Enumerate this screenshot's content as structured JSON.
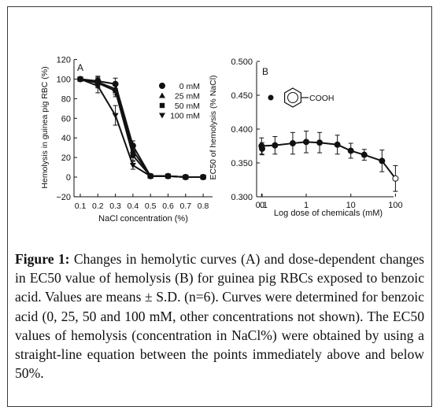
{
  "caption": {
    "label": "Figure 1:",
    "text": "Changes in hemolytic curves (A) and dose-dependent changes in EC50 value of hemolysis (B) for guinea pig RBCs exposed to benzoic acid. Values are means ± S.D. (n=6). Curves were determined for benzoic acid (0, 25, 50 and 100 mM, other concentrations not shown). The EC50 values of hemolysis (concentration in NaCl%) were obtained by using a straight-line equation between the points immediately above and below 50%."
  },
  "chart_data": [
    {
      "type": "line",
      "panel_label": "A",
      "xlabel": "NaCl concentration (%)",
      "ylabel": "Hemolysis in guinea pig RBC (%)",
      "x": [
        0.1,
        0.2,
        0.3,
        0.4,
        0.5,
        0.6,
        0.7,
        0.8
      ],
      "x_tick_labels": [
        "0.1",
        "0.2",
        "0.3",
        "0.4",
        "0.5",
        "0.6",
        "0.7",
        "0.8"
      ],
      "ylim": [
        -20,
        120
      ],
      "y_ticks": [
        -20,
        0,
        20,
        40,
        60,
        80,
        100,
        120
      ],
      "y_tick_labels": [
        "−20",
        "0",
        "20",
        "40",
        "60",
        "80",
        "100",
        "120"
      ],
      "series": [
        {
          "name": "0 mM",
          "marker": "circle",
          "values": [
            100,
            98,
            95,
            32,
            1,
            1,
            0,
            0
          ],
          "err": [
            2,
            5,
            6,
            5,
            2,
            2,
            2,
            2
          ]
        },
        {
          "name": "25 mM",
          "marker": "triangle-up",
          "values": [
            100,
            97,
            90,
            27,
            1,
            1,
            0,
            0
          ],
          "err": [
            2,
            5,
            6,
            5,
            2,
            2,
            2,
            2
          ]
        },
        {
          "name": "50 mM",
          "marker": "square",
          "values": [
            100,
            96,
            88,
            22,
            1,
            1,
            0,
            0
          ],
          "err": [
            2,
            5,
            6,
            5,
            2,
            2,
            2,
            2
          ]
        },
        {
          "name": "100 mM",
          "marker": "triangle-down",
          "values": [
            100,
            93,
            63,
            12,
            1,
            1,
            0,
            0
          ],
          "err": [
            2,
            7,
            10,
            4,
            2,
            2,
            2,
            2
          ]
        }
      ],
      "grid": false,
      "legend_position": "upper-right"
    },
    {
      "type": "line",
      "panel_label": "B",
      "xlabel": "Log dose of chemicals (mM)",
      "ylabel": "EC50 of hemolysis (% NaCl)",
      "x_scale": "log",
      "x_tick_labels": [
        "0",
        "0.1",
        "1",
        "10",
        "100"
      ],
      "ylim": [
        0.3,
        0.5
      ],
      "y_ticks": [
        0.3,
        0.35,
        0.4,
        0.45,
        0.5
      ],
      "y_tick_labels": [
        "0.300",
        "0.350",
        "0.400",
        "0.450",
        "0.500"
      ],
      "series": [
        {
          "name": "benzoic acid",
          "x": [
            0,
            0.1,
            0.2,
            0.5,
            1,
            2,
            5,
            10,
            20,
            50,
            100
          ],
          "values": [
            0.371,
            0.375,
            0.376,
            0.379,
            0.381,
            0.38,
            0.377,
            0.368,
            0.362,
            0.353,
            0.327
          ],
          "err": [
            0.009,
            0.012,
            0.013,
            0.016,
            0.016,
            0.015,
            0.014,
            0.011,
            0.008,
            0.016,
            0.019
          ],
          "last_point_open": true
        }
      ],
      "legend": {
        "marker": "circle",
        "structure_label": "COOH"
      },
      "grid": false
    }
  ]
}
